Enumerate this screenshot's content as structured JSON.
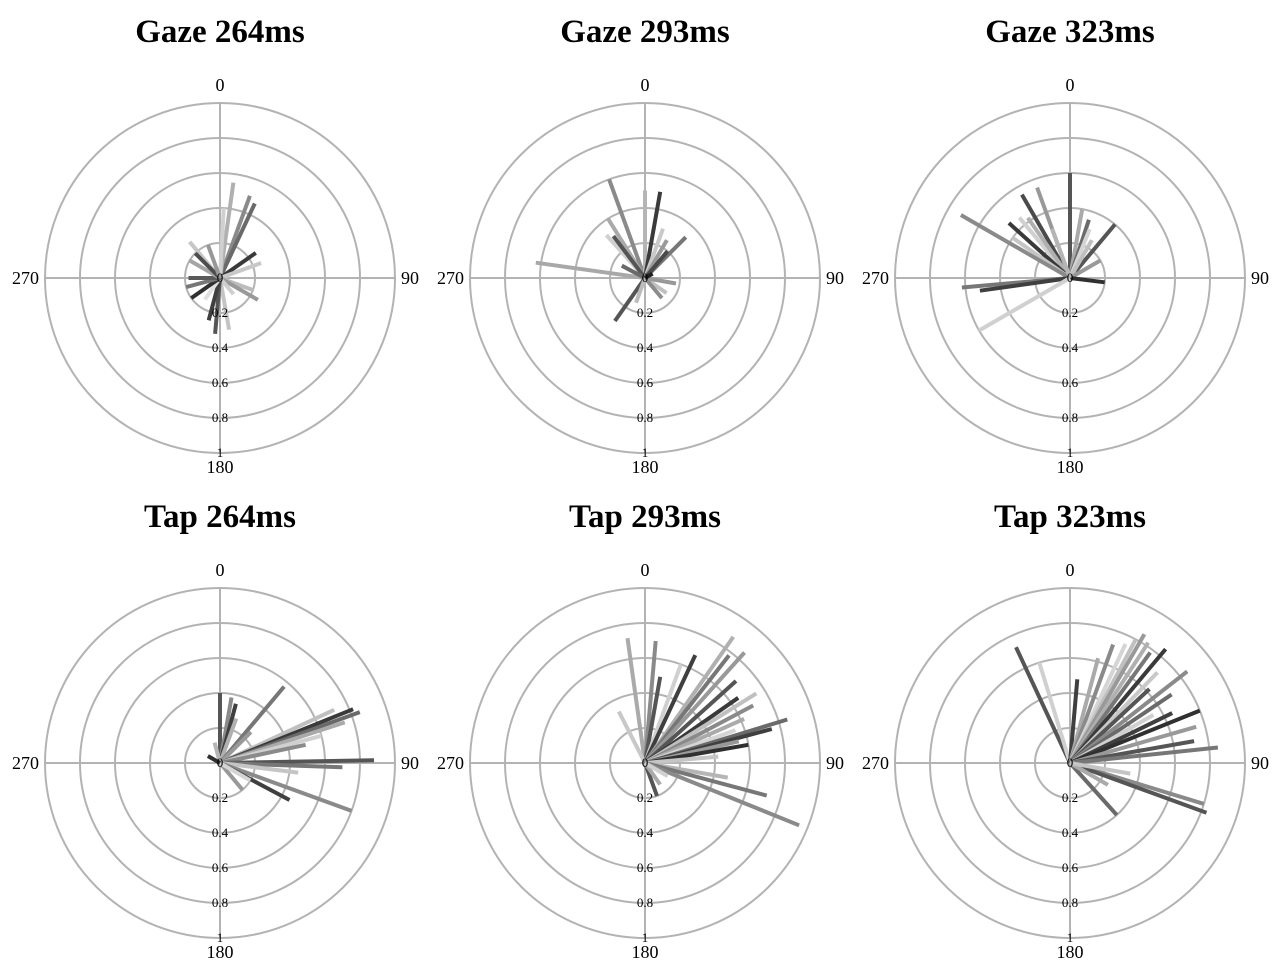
{
  "chart_data": [
    {
      "type": "polar",
      "title": "Gaze 264ms",
      "angle_labels": [
        "0",
        "90",
        "180",
        "270"
      ],
      "radial_ticks": [
        "0",
        "0.2",
        "0.4",
        "0.6",
        "0.8",
        "1"
      ],
      "rlim": [
        0,
        1
      ],
      "grid": true,
      "vectors": [
        {
          "angle": 20,
          "r": 0.5,
          "color": "#8a8a8a"
        },
        {
          "angle": 25,
          "r": 0.47,
          "color": "#6a6a6a"
        },
        {
          "angle": 8,
          "r": 0.55,
          "color": "#b0b0b0"
        },
        {
          "angle": 3,
          "r": 0.4,
          "color": "#d0d0d0"
        },
        {
          "angle": 55,
          "r": 0.25,
          "color": "#3a3a3a"
        },
        {
          "angle": 70,
          "r": 0.25,
          "color": "#c8c8c8"
        },
        {
          "angle": 110,
          "r": 0.2,
          "color": "#bcbcbc"
        },
        {
          "angle": 120,
          "r": 0.25,
          "color": "#999999"
        },
        {
          "angle": 140,
          "r": 0.12,
          "color": "#cfcfcf"
        },
        {
          "angle": 170,
          "r": 0.3,
          "color": "#c4c4c4"
        },
        {
          "angle": 185,
          "r": 0.32,
          "color": "#555555"
        },
        {
          "angle": 195,
          "r": 0.25,
          "color": "#3f3f3f"
        },
        {
          "angle": 215,
          "r": 0.15,
          "color": "#e0e0e0"
        },
        {
          "angle": 235,
          "r": 0.2,
          "color": "#303030"
        },
        {
          "angle": 255,
          "r": 0.2,
          "color": "#777777"
        },
        {
          "angle": 270,
          "r": 0.18,
          "color": "#5a5a5a"
        },
        {
          "angle": 300,
          "r": 0.2,
          "color": "#a5a5a5"
        },
        {
          "angle": 320,
          "r": 0.27,
          "color": "#c6c6c6"
        },
        {
          "angle": 315,
          "r": 0.2,
          "color": "#4d4d4d"
        },
        {
          "angle": 340,
          "r": 0.2,
          "color": "#989898"
        }
      ]
    },
    {
      "type": "polar",
      "title": "Gaze 293ms",
      "angle_labels": [
        "0",
        "90",
        "180",
        "270"
      ],
      "radial_ticks": [
        "0",
        "0.2",
        "0.4",
        "0.6",
        "0.8",
        "1"
      ],
      "rlim": [
        0,
        1
      ],
      "grid": true,
      "vectors": [
        {
          "angle": 340,
          "r": 0.6,
          "color": "#8a8a8a"
        },
        {
          "angle": 0,
          "r": 0.5,
          "color": "#b5b5b5"
        },
        {
          "angle": 10,
          "r": 0.5,
          "color": "#3a3a3a"
        },
        {
          "angle": 318,
          "r": 0.33,
          "color": "#d0d0d0"
        },
        {
          "angle": 328,
          "r": 0.4,
          "color": "#aaaaaa"
        },
        {
          "angle": 323,
          "r": 0.3,
          "color": "#555555"
        },
        {
          "angle": 20,
          "r": 0.3,
          "color": "#c9c9c9"
        },
        {
          "angle": 30,
          "r": 0.25,
          "color": "#9a9a9a"
        },
        {
          "angle": 45,
          "r": 0.33,
          "color": "#777777"
        },
        {
          "angle": 40,
          "r": 0.2,
          "color": "#4a4a4a"
        },
        {
          "angle": 278,
          "r": 0.63,
          "color": "#a8a8a8"
        },
        {
          "angle": 298,
          "r": 0.15,
          "color": "#6a6a6a"
        },
        {
          "angle": 125,
          "r": 0.15,
          "color": "#c0c0c0"
        },
        {
          "angle": 140,
          "r": 0.15,
          "color": "#8c8c8c"
        },
        {
          "angle": 215,
          "r": 0.3,
          "color": "#555555"
        },
        {
          "angle": 200,
          "r": 0.15,
          "color": "#bcbcbc"
        },
        {
          "angle": 100,
          "r": 0.18,
          "color": "#999999"
        },
        {
          "angle": 60,
          "r": 0.05,
          "color": "#202020"
        }
      ]
    },
    {
      "type": "polar",
      "title": "Gaze 323ms",
      "angle_labels": [
        "0",
        "90",
        "180",
        "270"
      ],
      "radial_ticks": [
        "0",
        "0.2",
        "0.4",
        "0.6",
        "0.8",
        "1"
      ],
      "rlim": [
        0,
        1
      ],
      "grid": true,
      "vectors": [
        {
          "angle": 0,
          "r": 0.6,
          "color": "#555555"
        },
        {
          "angle": 330,
          "r": 0.55,
          "color": "#4a4a4a"
        },
        {
          "angle": 340,
          "r": 0.55,
          "color": "#999999"
        },
        {
          "angle": 320,
          "r": 0.45,
          "color": "#d0d0d0"
        },
        {
          "angle": 325,
          "r": 0.42,
          "color": "#b0b0b0"
        },
        {
          "angle": 312,
          "r": 0.47,
          "color": "#3a3a3a"
        },
        {
          "angle": 305,
          "r": 0.4,
          "color": "#c5c5c5"
        },
        {
          "angle": 300,
          "r": 0.72,
          "color": "#8a8a8a"
        },
        {
          "angle": 10,
          "r": 0.4,
          "color": "#aaaaaa"
        },
        {
          "angle": 18,
          "r": 0.35,
          "color": "#6a6a6a"
        },
        {
          "angle": 22,
          "r": 0.3,
          "color": "#d5d5d5"
        },
        {
          "angle": 40,
          "r": 0.4,
          "color": "#555555"
        },
        {
          "angle": 30,
          "r": 0.25,
          "color": "#c0c0c0"
        },
        {
          "angle": 60,
          "r": 0.2,
          "color": "#999999"
        },
        {
          "angle": 97,
          "r": 0.2,
          "color": "#303030"
        },
        {
          "angle": 265,
          "r": 0.62,
          "color": "#777777"
        },
        {
          "angle": 262,
          "r": 0.52,
          "color": "#3f3f3f"
        },
        {
          "angle": 240,
          "r": 0.6,
          "color": "#d0d0d0"
        },
        {
          "angle": 340,
          "r": 0.3,
          "color": "#b5b5b5"
        }
      ]
    },
    {
      "type": "polar",
      "title": "Tap 264ms",
      "angle_labels": [
        "0",
        "90",
        "180",
        "270"
      ],
      "radial_ticks": [
        "0",
        "0.2",
        "0.4",
        "0.6",
        "0.8",
        "1"
      ],
      "rlim": [
        0,
        1
      ],
      "grid": true,
      "vectors": [
        {
          "angle": 0,
          "r": 0.4,
          "color": "#555555"
        },
        {
          "angle": 10,
          "r": 0.38,
          "color": "#8a8a8a"
        },
        {
          "angle": 15,
          "r": 0.35,
          "color": "#3f3f3f"
        },
        {
          "angle": 20,
          "r": 0.27,
          "color": "#b0b0b0"
        },
        {
          "angle": 40,
          "r": 0.57,
          "color": "#777777"
        },
        {
          "angle": 45,
          "r": 0.25,
          "color": "#999999"
        },
        {
          "angle": 65,
          "r": 0.72,
          "color": "#c0c0c0"
        },
        {
          "angle": 68,
          "r": 0.82,
          "color": "#3a3a3a"
        },
        {
          "angle": 70,
          "r": 0.85,
          "color": "#6a6a6a"
        },
        {
          "angle": 72,
          "r": 0.75,
          "color": "#aaaaaa"
        },
        {
          "angle": 75,
          "r": 0.6,
          "color": "#d0d0d0"
        },
        {
          "angle": 78,
          "r": 0.5,
          "color": "#8a8a8a"
        },
        {
          "angle": 89,
          "r": 0.88,
          "color": "#555555"
        },
        {
          "angle": 92,
          "r": 0.7,
          "color": "#777777"
        },
        {
          "angle": 97,
          "r": 0.45,
          "color": "#c5c5c5"
        },
        {
          "angle": 110,
          "r": 0.8,
          "color": "#8a8a8a"
        },
        {
          "angle": 118,
          "r": 0.45,
          "color": "#3f3f3f"
        },
        {
          "angle": 140,
          "r": 0.2,
          "color": "#999999"
        },
        {
          "angle": 120,
          "r": 0.2,
          "color": "#d5d5d5"
        },
        {
          "angle": 345,
          "r": 0.12,
          "color": "#b5b5b5"
        },
        {
          "angle": 300,
          "r": 0.08,
          "color": "#303030"
        }
      ]
    },
    {
      "type": "polar",
      "title": "Tap 293ms",
      "angle_labels": [
        "0",
        "90",
        "180",
        "270"
      ],
      "radial_ticks": [
        "0",
        "0.2",
        "0.4",
        "0.6",
        "0.8",
        "1"
      ],
      "rlim": [
        0,
        1
      ],
      "grid": true,
      "vectors": [
        {
          "angle": 352,
          "r": 0.72,
          "color": "#aaaaaa"
        },
        {
          "angle": 5,
          "r": 0.7,
          "color": "#8a8a8a"
        },
        {
          "angle": 10,
          "r": 0.5,
          "color": "#555555"
        },
        {
          "angle": 333,
          "r": 0.33,
          "color": "#c8c8c8"
        },
        {
          "angle": 20,
          "r": 0.6,
          "color": "#d0d0d0"
        },
        {
          "angle": 25,
          "r": 0.68,
          "color": "#3f3f3f"
        },
        {
          "angle": 35,
          "r": 0.88,
          "color": "#b0b0b0"
        },
        {
          "angle": 38,
          "r": 0.78,
          "color": "#777777"
        },
        {
          "angle": 42,
          "r": 0.85,
          "color": "#999999"
        },
        {
          "angle": 48,
          "r": 0.7,
          "color": "#555555"
        },
        {
          "angle": 55,
          "r": 0.65,
          "color": "#3a3a3a"
        },
        {
          "angle": 58,
          "r": 0.75,
          "color": "#c0c0c0"
        },
        {
          "angle": 62,
          "r": 0.7,
          "color": "#8a8a8a"
        },
        {
          "angle": 66,
          "r": 0.62,
          "color": "#aaaaaa"
        },
        {
          "angle": 70,
          "r": 0.55,
          "color": "#d5d5d5"
        },
        {
          "angle": 73,
          "r": 0.85,
          "color": "#6a6a6a"
        },
        {
          "angle": 75,
          "r": 0.75,
          "color": "#3f3f3f"
        },
        {
          "angle": 77,
          "r": 0.55,
          "color": "#999999"
        },
        {
          "angle": 80,
          "r": 0.6,
          "color": "#303030"
        },
        {
          "angle": 85,
          "r": 0.42,
          "color": "#c5c5c5"
        },
        {
          "angle": 100,
          "r": 0.48,
          "color": "#b5b5b5"
        },
        {
          "angle": 105,
          "r": 0.72,
          "color": "#777777"
        },
        {
          "angle": 112,
          "r": 0.95,
          "color": "#8a8a8a"
        },
        {
          "angle": 160,
          "r": 0.2,
          "color": "#555555"
        },
        {
          "angle": 145,
          "r": 0.15,
          "color": "#aaaaaa"
        },
        {
          "angle": 120,
          "r": 0.15,
          "color": "#d0d0d0"
        }
      ]
    },
    {
      "type": "polar",
      "title": "Tap 323ms",
      "angle_labels": [
        "0",
        "90",
        "180",
        "270"
      ],
      "radial_ticks": [
        "0",
        "0.2",
        "0.4",
        "0.6",
        "0.8",
        "1"
      ],
      "rlim": [
        0,
        1
      ],
      "grid": true,
      "vectors": [
        {
          "angle": 335,
          "r": 0.73,
          "color": "#555555"
        },
        {
          "angle": 343,
          "r": 0.6,
          "color": "#d0d0d0"
        },
        {
          "angle": 5,
          "r": 0.48,
          "color": "#3f3f3f"
        },
        {
          "angle": 15,
          "r": 0.62,
          "color": "#aaaaaa"
        },
        {
          "angle": 20,
          "r": 0.72,
          "color": "#8a8a8a"
        },
        {
          "angle": 25,
          "r": 0.75,
          "color": "#d5d5d5"
        },
        {
          "angle": 28,
          "r": 0.8,
          "color": "#c0c0c0"
        },
        {
          "angle": 30,
          "r": 0.85,
          "color": "#999999"
        },
        {
          "angle": 33,
          "r": 0.82,
          "color": "#b0b0b0"
        },
        {
          "angle": 36,
          "r": 0.78,
          "color": "#777777"
        },
        {
          "angle": 40,
          "r": 0.85,
          "color": "#3a3a3a"
        },
        {
          "angle": 44,
          "r": 0.72,
          "color": "#c8c8c8"
        },
        {
          "angle": 47,
          "r": 0.62,
          "color": "#555555"
        },
        {
          "angle": 52,
          "r": 0.85,
          "color": "#8a8a8a"
        },
        {
          "angle": 56,
          "r": 0.7,
          "color": "#6a6a6a"
        },
        {
          "angle": 60,
          "r": 0.55,
          "color": "#d0d0d0"
        },
        {
          "angle": 64,
          "r": 0.65,
          "color": "#3f3f3f"
        },
        {
          "angle": 68,
          "r": 0.8,
          "color": "#303030"
        },
        {
          "angle": 74,
          "r": 0.75,
          "color": "#999999"
        },
        {
          "angle": 80,
          "r": 0.72,
          "color": "#555555"
        },
        {
          "angle": 84,
          "r": 0.85,
          "color": "#777777"
        },
        {
          "angle": 107,
          "r": 0.8,
          "color": "#8a8a8a"
        },
        {
          "angle": 110,
          "r": 0.83,
          "color": "#555555"
        },
        {
          "angle": 138,
          "r": 0.4,
          "color": "#6a6a6a"
        },
        {
          "angle": 120,
          "r": 0.25,
          "color": "#aaaaaa"
        },
        {
          "angle": 100,
          "r": 0.35,
          "color": "#c5c5c5"
        }
      ]
    }
  ]
}
